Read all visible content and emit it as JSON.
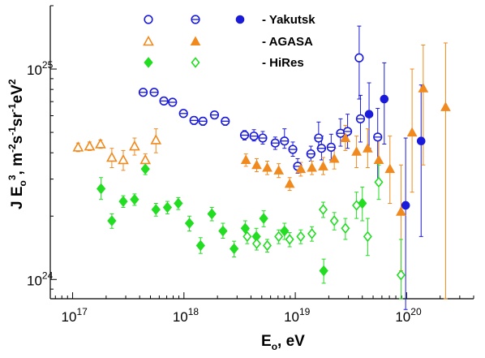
{
  "chart_data": {
    "type": "scatter",
    "x_scale": "log",
    "y_scale": "log",
    "xlim": [
      6.3e+16,
      4e+20
    ],
    "ylim": [
      8.1e+23,
      2e+25
    ],
    "xlabel_main": "E",
    "xlabel_sub": "o",
    "xlabel_unit": ", eV",
    "ylabel": {
      "main": "J E",
      "sub": "o",
      "sup": "3",
      "unit": ", m",
      "u1": "-2",
      "s": "s",
      "u2": "-1",
      "sr": "sr",
      "u3": "-1",
      "ev": "eV",
      "u4": "2"
    },
    "x_ticks": [
      {
        "value": 1e+17,
        "base": "10",
        "exp": "17"
      },
      {
        "value": 1e+18,
        "base": "10",
        "exp": "18"
      },
      {
        "value": 1e+19,
        "base": "10",
        "exp": "19"
      },
      {
        "value": 1e+20,
        "base": "10",
        "exp": "20"
      }
    ],
    "y_ticks": [
      {
        "value": 1e+24,
        "base": "10",
        "exp": "24"
      },
      {
        "value": 1e+25,
        "base": "10",
        "exp": "25"
      }
    ],
    "legend": [
      {
        "label": "- Yakutsk",
        "markers": [
          "open-circle",
          "barred-circle",
          "filled-circle"
        ],
        "color": "#1a1adb"
      },
      {
        "label": "- AGASA",
        "markers": [
          "open-triangle",
          "filled-triangle"
        ],
        "color": "#f08a1e"
      },
      {
        "label": "- HiRes",
        "markers": [
          "filled-diamond",
          "open-diamond"
        ],
        "color": "#22dd22"
      }
    ],
    "series": [
      {
        "marker": "barred-circle",
        "color": "#1a1adb",
        "points": [
          {
            "x": 4.3e+17,
            "y": 7.75e+24,
            "lo": 7.5e+24,
            "hi": 8e+24
          },
          {
            "x": 5.4e+17,
            "y": 7.75e+24,
            "lo": 7.5e+24,
            "hi": 8e+24
          },
          {
            "x": 6.6e+17,
            "y": 7.05e+24,
            "lo": 6.8e+24,
            "hi": 7.3e+24
          },
          {
            "x": 7.9e+17,
            "y": 6.95e+24,
            "lo": 6.7e+24,
            "hi": 7.2e+24
          },
          {
            "x": 9.9e+17,
            "y": 6.15e+24,
            "lo": 5.9e+24,
            "hi": 6.4e+24
          },
          {
            "x": 1.23e+18,
            "y": 5.7e+24,
            "lo": 5.45e+24,
            "hi": 5.95e+24
          },
          {
            "x": 1.48e+18,
            "y": 5.65e+24,
            "lo": 5.4e+24,
            "hi": 5.9e+24
          },
          {
            "x": 1.88e+18,
            "y": 6.05e+24,
            "lo": 5.8e+24,
            "hi": 6.3e+24
          },
          {
            "x": 2.35e+18,
            "y": 5.65e+24,
            "lo": 5.4e+24,
            "hi": 5.9e+24
          },
          {
            "x": 3.5e+18,
            "y": 4.85e+24,
            "lo": 4.6e+24,
            "hi": 5.1e+24
          },
          {
            "x": 4.25e+18,
            "y": 4.8e+24,
            "lo": 4.55e+24,
            "hi": 5.15e+24
          },
          {
            "x": 5.1e+18,
            "y": 4.7e+24,
            "lo": 4.4e+24,
            "hi": 5.05e+24
          },
          {
            "x": 6.6e+18,
            "y": 4.45e+24,
            "lo": 4.15e+24,
            "hi": 4.75e+24
          },
          {
            "x": 8e+18,
            "y": 4.55e+24,
            "lo": 4.2e+24,
            "hi": 5.2e+24
          },
          {
            "x": 9.5e+18,
            "y": 4.15e+24,
            "lo": 3.85e+24,
            "hi": 4.5e+24
          },
          {
            "x": 1.05e+19,
            "y": 3.45e+24,
            "lo": 3.2e+24,
            "hi": 3.75e+24
          },
          {
            "x": 1.38e+19,
            "y": 3.95e+24,
            "lo": 3.65e+24,
            "hi": 4.3e+24
          },
          {
            "x": 1.62e+19,
            "y": 4.7e+24,
            "lo": 4.2e+24,
            "hi": 5.6e+24
          },
          {
            "x": 1.72e+19,
            "y": 4.2e+24,
            "lo": 3.7e+24,
            "hi": 4.8e+24
          },
          {
            "x": 2.1e+19,
            "y": 4.25e+24,
            "lo": 3.7e+24,
            "hi": 4.9e+24
          },
          {
            "x": 2.55e+19,
            "y": 4.95e+24,
            "lo": 4.3e+24,
            "hi": 5.8e+24
          },
          {
            "x": 2.95e+19,
            "y": 5.05e+24,
            "lo": 4.2e+24,
            "hi": 6.1e+24
          },
          {
            "x": 3.85e+19,
            "y": 5.8e+24,
            "lo": 4.5e+24,
            "hi": 7.5e+24
          },
          {
            "x": 5.5e+19,
            "y": 4.75e+24,
            "lo": 2.9e+24,
            "hi": 6.5e+24
          }
        ]
      },
      {
        "marker": "open-circle",
        "color": "#1a1adb",
        "points": [
          {
            "x": 3.75e+19,
            "y": 1.13e+25,
            "lo": 7.2e+24,
            "hi": 1.6e+25
          }
        ]
      },
      {
        "marker": "filled-circle",
        "color": "#1a1adb",
        "points": [
          {
            "x": 4.6e+19,
            "y": 6.1e+24,
            "lo": 4.2e+24,
            "hi": 8.6e+24
          },
          {
            "x": 6.3e+19,
            "y": 7.2e+24,
            "lo": 4.4e+24,
            "hi": 1.07e+25
          },
          {
            "x": 9.8e+19,
            "y": 2.25e+24,
            "lo": 7.2e+23,
            "hi": 4.7e+24
          },
          {
            "x": 1.35e+20,
            "y": 4.55e+24,
            "lo": 1.6e+24,
            "hi": 8.4e+24
          }
        ]
      },
      {
        "marker": "open-triangle",
        "color": "#f08a1e",
        "points": [
          {
            "x": 1.12e+17,
            "y": 4.25e+24,
            "lo": 4.05e+24,
            "hi": 4.45e+24
          },
          {
            "x": 1.42e+17,
            "y": 4.3e+24,
            "lo": 4.1e+24,
            "hi": 4.5e+24
          },
          {
            "x": 1.78e+17,
            "y": 4.4e+24,
            "lo": 4.2e+24,
            "hi": 4.6e+24
          },
          {
            "x": 2.25e+17,
            "y": 3.8e+24,
            "lo": 3.4e+24,
            "hi": 4.2e+24
          },
          {
            "x": 2.85e+17,
            "y": 3.7e+24,
            "lo": 3.3e+24,
            "hi": 4.1e+24
          },
          {
            "x": 3.6e+17,
            "y": 4.3e+24,
            "lo": 3.9e+24,
            "hi": 4.7e+24
          },
          {
            "x": 4.5e+17,
            "y": 3.7e+24,
            "lo": 3.45e+24,
            "hi": 3.95e+24
          },
          {
            "x": 5.6e+17,
            "y": 4.6e+24,
            "lo": 4e+24,
            "hi": 5.2e+24
          }
        ]
      },
      {
        "marker": "filled-triangle",
        "color": "#f08a1e",
        "points": [
          {
            "x": 3.6e+18,
            "y": 3.7e+24,
            "lo": 3.45e+24,
            "hi": 3.95e+24
          },
          {
            "x": 4.5e+18,
            "y": 3.5e+24,
            "lo": 3.25e+24,
            "hi": 3.75e+24
          },
          {
            "x": 5.6e+18,
            "y": 3.4e+24,
            "lo": 3.15e+24,
            "hi": 3.65e+24
          },
          {
            "x": 7.1e+18,
            "y": 3.3e+24,
            "lo": 3.05e+24,
            "hi": 3.55e+24
          },
          {
            "x": 8.9e+18,
            "y": 2.85e+24,
            "lo": 2.65e+24,
            "hi": 3.05e+24
          },
          {
            "x": 1.12e+19,
            "y": 3.35e+24,
            "lo": 3.1e+24,
            "hi": 3.6e+24
          },
          {
            "x": 1.41e+19,
            "y": 3.4e+24,
            "lo": 3.15e+24,
            "hi": 3.65e+24
          },
          {
            "x": 1.78e+19,
            "y": 3.45e+24,
            "lo": 3.15e+24,
            "hi": 3.8e+24
          },
          {
            "x": 2.24e+19,
            "y": 3.75e+24,
            "lo": 3.35e+24,
            "hi": 4.2e+24
          },
          {
            "x": 2.82e+19,
            "y": 4.7e+24,
            "lo": 4.1e+24,
            "hi": 5.4e+24
          },
          {
            "x": 3.55e+19,
            "y": 4.05e+24,
            "lo": 3.4e+24,
            "hi": 4.8e+24
          },
          {
            "x": 4.47e+19,
            "y": 4.2e+24,
            "lo": 3.4e+24,
            "hi": 5.2e+24
          },
          {
            "x": 5.62e+19,
            "y": 3.7e+24,
            "lo": 2.8e+24,
            "hi": 4.9e+24
          },
          {
            "x": 7.08e+19,
            "y": 3.35e+24,
            "lo": 2.3e+24,
            "hi": 4.8e+24
          },
          {
            "x": 8.9e+19,
            "y": 2.1e+24,
            "lo": 1.1e+24,
            "hi": 3.5e+24
          },
          {
            "x": 1.12e+20,
            "y": 5e+24,
            "lo": 2.6e+24,
            "hi": 1e+25
          },
          {
            "x": 1.41e+20,
            "y": 8.1e+24,
            "lo": 3.5e+24,
            "hi": 1.3e+25
          },
          {
            "x": 2.24e+20,
            "y": 6.6e+24,
            "lo": 8.1e+23,
            "hi": 1.33e+25
          }
        ]
      },
      {
        "marker": "filled-diamond",
        "color": "#22dd22",
        "points": [
          {
            "x": 1.8e+17,
            "y": 2.7e+24,
            "lo": 2.4e+24,
            "hi": 3.05e+24
          },
          {
            "x": 2.25e+17,
            "y": 1.9e+24,
            "lo": 1.75e+24,
            "hi": 2.05e+24
          },
          {
            "x": 2.85e+17,
            "y": 2.35e+24,
            "lo": 2.2e+24,
            "hi": 2.5e+24
          },
          {
            "x": 3.6e+17,
            "y": 2.4e+24,
            "lo": 2.25e+24,
            "hi": 2.55e+24
          },
          {
            "x": 4.5e+17,
            "y": 3.35e+24,
            "lo": 3.15e+24,
            "hi": 3.55e+24
          },
          {
            "x": 5.6e+17,
            "y": 2.15e+24,
            "lo": 2e+24,
            "hi": 2.3e+24
          },
          {
            "x": 7.1e+17,
            "y": 2.2e+24,
            "lo": 2.05e+24,
            "hi": 2.35e+24
          },
          {
            "x": 8.9e+17,
            "y": 2.3e+24,
            "lo": 2.15e+24,
            "hi": 2.45e+24
          },
          {
            "x": 1.12e+18,
            "y": 1.85e+24,
            "lo": 1.7e+24,
            "hi": 2e+24
          },
          {
            "x": 1.41e+18,
            "y": 1.45e+24,
            "lo": 1.33e+24,
            "hi": 1.58e+24
          },
          {
            "x": 1.78e+18,
            "y": 2.05e+24,
            "lo": 1.9e+24,
            "hi": 2.2e+24
          },
          {
            "x": 2.24e+18,
            "y": 1.7e+24,
            "lo": 1.57e+24,
            "hi": 1.85e+24
          },
          {
            "x": 2.82e+18,
            "y": 1.4e+24,
            "lo": 1.28e+24,
            "hi": 1.52e+24
          },
          {
            "x": 3.55e+18,
            "y": 1.75e+24,
            "lo": 1.6e+24,
            "hi": 1.9e+24
          },
          {
            "x": 4.47e+18,
            "y": 1.6e+24,
            "lo": 1.47e+24,
            "hi": 1.75e+24
          },
          {
            "x": 5.2e+18,
            "y": 1.95e+24,
            "lo": 1.78e+24,
            "hi": 2.12e+24
          },
          {
            "x": 8e+18,
            "y": 1.7e+24,
            "lo": 1.55e+24,
            "hi": 1.85e+24
          },
          {
            "x": 1.8e+19,
            "y": 1.1e+24,
            "lo": 9.6e+23,
            "hi": 1.25e+24
          },
          {
            "x": 4e+19,
            "y": 2.3e+24,
            "lo": 1.9e+24,
            "hi": 2.75e+24
          }
        ]
      },
      {
        "marker": "open-diamond",
        "color": "#22dd22",
        "points": [
          {
            "x": 3.7e+18,
            "y": 1.6e+24,
            "lo": 1.48e+24,
            "hi": 1.72e+24
          },
          {
            "x": 4.5e+18,
            "y": 1.48e+24,
            "lo": 1.38e+24,
            "hi": 1.58e+24
          },
          {
            "x": 5.6e+18,
            "y": 1.45e+24,
            "lo": 1.35e+24,
            "hi": 1.55e+24
          },
          {
            "x": 7.1e+18,
            "y": 1.6e+24,
            "lo": 1.48e+24,
            "hi": 1.72e+24
          },
          {
            "x": 8.9e+18,
            "y": 1.55e+24,
            "lo": 1.43e+24,
            "hi": 1.67e+24
          },
          {
            "x": 1.12e+19,
            "y": 1.6e+24,
            "lo": 1.48e+24,
            "hi": 1.72e+24
          },
          {
            "x": 1.41e+19,
            "y": 1.65e+24,
            "lo": 1.52e+24,
            "hi": 1.78e+24
          },
          {
            "x": 1.78e+19,
            "y": 2.15e+24,
            "lo": 1.97e+24,
            "hi": 2.33e+24
          },
          {
            "x": 2.24e+19,
            "y": 1.9e+24,
            "lo": 1.72e+24,
            "hi": 2.08e+24
          },
          {
            "x": 2.82e+19,
            "y": 1.75e+24,
            "lo": 1.55e+24,
            "hi": 1.95e+24
          },
          {
            "x": 3.55e+19,
            "y": 2.25e+24,
            "lo": 1.95e+24,
            "hi": 2.6e+24
          },
          {
            "x": 4.47e+19,
            "y": 1.6e+24,
            "lo": 1.3e+24,
            "hi": 1.95e+24
          },
          {
            "x": 5.62e+19,
            "y": 2.9e+24,
            "lo": 2.4e+24,
            "hi": 3.5e+24
          },
          {
            "x": 8.9e+19,
            "y": 1.05e+24,
            "lo": 8.1e+23,
            "hi": 1.55e+24
          }
        ]
      }
    ]
  }
}
